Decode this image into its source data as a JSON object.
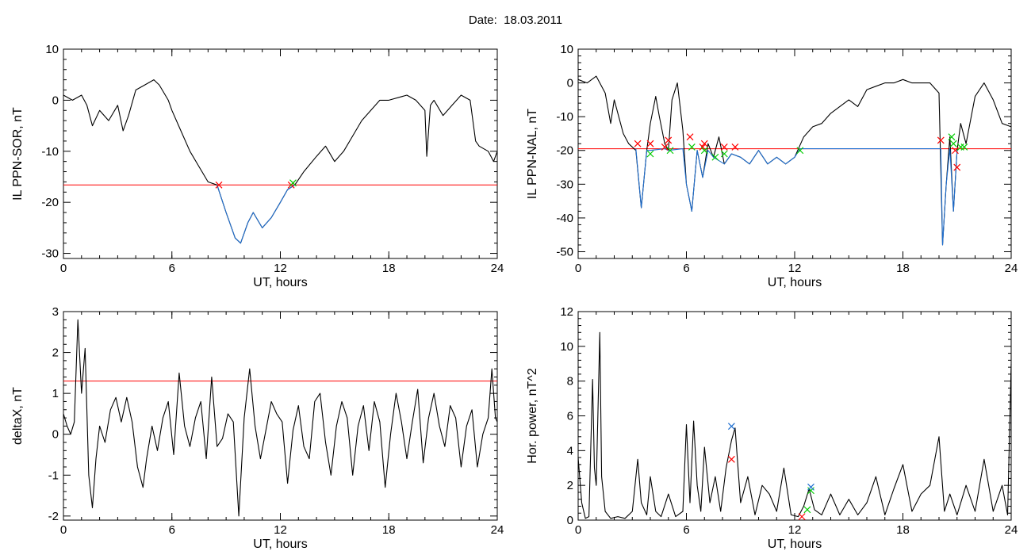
{
  "header": {
    "date_label": "Date:",
    "date_value": "18.03.2011"
  },
  "chart_data": [
    {
      "type": "line",
      "title": "",
      "xlabel": "UT, hours",
      "ylabel": "IL PPN-SOR, nT",
      "xlim": [
        0,
        24
      ],
      "ylim": [
        -31,
        10
      ],
      "xticks": [
        0,
        6,
        12,
        18,
        24
      ],
      "yticks": [
        -30,
        -20,
        -10,
        0,
        10
      ],
      "threshold": -16.6,
      "series": [
        {
          "role": "signal",
          "color": "#000000",
          "x": [
            0,
            0.5,
            1,
            1.3,
            1.6,
            2.0,
            2.5,
            3.0,
            3.3,
            3.6,
            4.0,
            4.5,
            5.0,
            5.3,
            5.8,
            6.0,
            6.5,
            7.0,
            7.5,
            8.0,
            8.5,
            9.0,
            9.5,
            9.8,
            10.2,
            10.5,
            11.0,
            11.5,
            12.0,
            12.4,
            12.8,
            13.3,
            14.0,
            14.5,
            15.0,
            15.5,
            16.0,
            16.5,
            17.0,
            17.5,
            18.0,
            19.0,
            19.5,
            20.0,
            20.1,
            20.3,
            20.5,
            21.0,
            21.5,
            22.0,
            22.5,
            22.8,
            23.0,
            23.5,
            23.8,
            24.0
          ],
          "y": [
            1,
            0,
            1,
            -1,
            -5,
            -2,
            -4,
            -1,
            -6,
            -3,
            2,
            3,
            4,
            3,
            0,
            -2,
            -6,
            -10,
            -13,
            -16,
            -16.6,
            -22,
            -27,
            -28,
            -24,
            -22,
            -25,
            -23,
            -20,
            -17.5,
            -16.6,
            -14,
            -11,
            -9,
            -12,
            -10,
            -7,
            -4,
            -2,
            0,
            0,
            1,
            0,
            -2,
            -11,
            -1,
            0,
            -3,
            -1,
            1,
            0,
            -8,
            -9,
            -10,
            -12,
            -10
          ]
        },
        {
          "role": "below-threshold",
          "color": "#1f6fd0",
          "x": [
            8.5,
            9.0,
            9.5,
            9.8,
            10.2,
            10.5,
            11.0,
            11.5,
            12.0,
            12.4,
            12.8
          ],
          "y": [
            -16.6,
            -22,
            -27,
            -28,
            -24,
            -22,
            -25,
            -23,
            -20,
            -17.5,
            -16.6
          ]
        }
      ],
      "markers": [
        {
          "x": 8.6,
          "y": -16.6,
          "color": "#ff0000"
        },
        {
          "x": 12.6,
          "y": -16.6,
          "color": "#ff0000"
        },
        {
          "x": 12.7,
          "y": -16.2,
          "color": "#00cc00"
        }
      ]
    },
    {
      "type": "line",
      "title": "",
      "xlabel": "UT, hours",
      "ylabel": "IL PPN-NAL, nT",
      "xlim": [
        0,
        24
      ],
      "ylim": [
        -52,
        10
      ],
      "xticks": [
        0,
        6,
        12,
        18,
        24
      ],
      "yticks": [
        -50,
        -40,
        -30,
        -20,
        -10,
        0,
        10
      ],
      "threshold": -19.5,
      "series": [
        {
          "role": "signal",
          "color": "#000000",
          "x": [
            0,
            0.5,
            1.0,
            1.5,
            1.8,
            2.0,
            2.5,
            2.8,
            3.2,
            3.5,
            3.8,
            4.0,
            4.3,
            4.5,
            4.8,
            5.0,
            5.2,
            5.5,
            5.8,
            6.0,
            6.3,
            6.6,
            6.9,
            7.2,
            7.5,
            7.8,
            8.1,
            8.5,
            9.0,
            9.5,
            10.0,
            10.5,
            11.0,
            11.5,
            12.0,
            12.5,
            13.0,
            13.5,
            14.0,
            15.0,
            15.5,
            16.0,
            16.5,
            17.0,
            17.5,
            18.0,
            18.5,
            19.0,
            19.5,
            20.0,
            20.2,
            20.4,
            20.6,
            20.8,
            21.0,
            21.2,
            21.5,
            22.0,
            22.5,
            23.0,
            23.5,
            24.0
          ],
          "y": [
            1,
            0,
            2,
            -3,
            -12,
            -5,
            -15,
            -18,
            -20,
            -37,
            -20,
            -12,
            -4,
            -10,
            -18,
            -20,
            -5,
            0,
            -14,
            -30,
            -38,
            -20,
            -28,
            -18,
            -22,
            -16,
            -24,
            -21,
            -22,
            -24,
            -20,
            -24,
            -22,
            -24,
            -22,
            -16,
            -13,
            -12,
            -9,
            -5,
            -7,
            -2,
            -1,
            0,
            0,
            1,
            0,
            0,
            0,
            -3,
            -48,
            -30,
            -16,
            -38,
            -20,
            -12,
            -18,
            -4,
            0,
            -5,
            -12,
            -13
          ]
        },
        {
          "role": "below-threshold",
          "color": "#1f6fd0",
          "x": [
            3.2,
            3.5,
            3.8,
            4.0,
            4.8,
            5.0,
            5.8,
            6.0,
            6.3,
            6.6,
            6.9,
            7.2,
            7.5,
            8.1,
            8.5,
            9.0,
            9.5,
            10.0,
            10.5,
            11.0,
            11.5,
            12.0,
            12.3,
            20.1,
            20.2,
            20.4,
            20.6,
            20.8,
            21.0
          ],
          "y": [
            -19.5,
            -37,
            -20,
            -20,
            -19.5,
            -20,
            -19.5,
            -30,
            -38,
            -20,
            -28,
            -20,
            -22,
            -24,
            -21,
            -22,
            -24,
            -20,
            -24,
            -22,
            -24,
            -22,
            -19.5,
            -19.5,
            -48,
            -30,
            -19.5,
            -38,
            -20
          ]
        }
      ],
      "markers": [
        {
          "x": 3.3,
          "y": -18,
          "color": "#ff0000"
        },
        {
          "x": 4.0,
          "y": -18,
          "color": "#ff0000"
        },
        {
          "x": 4.0,
          "y": -21,
          "color": "#00cc00"
        },
        {
          "x": 4.8,
          "y": -19,
          "color": "#ff0000"
        },
        {
          "x": 5.0,
          "y": -17,
          "color": "#ff0000"
        },
        {
          "x": 5.1,
          "y": -20,
          "color": "#00cc00"
        },
        {
          "x": 6.2,
          "y": -16,
          "color": "#ff0000"
        },
        {
          "x": 6.3,
          "y": -19,
          "color": "#00cc00"
        },
        {
          "x": 6.9,
          "y": -19,
          "color": "#ff0000"
        },
        {
          "x": 7.0,
          "y": -18,
          "color": "#ff0000"
        },
        {
          "x": 7.0,
          "y": -20,
          "color": "#00cc00"
        },
        {
          "x": 7.6,
          "y": -22,
          "color": "#00cc00"
        },
        {
          "x": 8.1,
          "y": -19,
          "color": "#ff0000"
        },
        {
          "x": 8.1,
          "y": -21,
          "color": "#00cc00"
        },
        {
          "x": 8.7,
          "y": -19,
          "color": "#ff0000"
        },
        {
          "x": 12.3,
          "y": -20,
          "color": "#00cc00"
        },
        {
          "x": 20.1,
          "y": -17,
          "color": "#ff0000"
        },
        {
          "x": 20.7,
          "y": -16,
          "color": "#00cc00"
        },
        {
          "x": 20.8,
          "y": -18,
          "color": "#00cc00"
        },
        {
          "x": 20.9,
          "y": -20,
          "color": "#ff0000"
        },
        {
          "x": 21.0,
          "y": -25,
          "color": "#ff0000"
        },
        {
          "x": 21.2,
          "y": -19,
          "color": "#00cc00"
        },
        {
          "x": 21.4,
          "y": -19,
          "color": "#00cc00"
        }
      ]
    },
    {
      "type": "line",
      "title": "",
      "xlabel": "UT, hours",
      "ylabel": "deltaX, nT",
      "xlim": [
        0,
        24
      ],
      "ylim": [
        -2.1,
        3
      ],
      "xticks": [
        0,
        6,
        12,
        18,
        24
      ],
      "yticks": [
        -2,
        -1,
        0,
        1,
        2,
        3
      ],
      "threshold": 1.3,
      "series": [
        {
          "role": "signal",
          "color": "#000000",
          "x": [
            0,
            0.2,
            0.4,
            0.6,
            0.8,
            1.0,
            1.2,
            1.4,
            1.6,
            1.8,
            2.0,
            2.3,
            2.6,
            2.9,
            3.2,
            3.5,
            3.8,
            4.1,
            4.4,
            4.6,
            4.9,
            5.2,
            5.5,
            5.8,
            6.1,
            6.4,
            6.7,
            7.0,
            7.3,
            7.6,
            7.9,
            8.2,
            8.5,
            8.8,
            9.1,
            9.4,
            9.7,
            10.0,
            10.3,
            10.6,
            10.9,
            11.2,
            11.5,
            11.8,
            12.1,
            12.4,
            12.7,
            13.0,
            13.3,
            13.6,
            13.9,
            14.2,
            14.5,
            14.8,
            15.1,
            15.4,
            15.7,
            16.0,
            16.3,
            16.6,
            16.9,
            17.2,
            17.5,
            17.8,
            18.1,
            18.4,
            18.7,
            19.0,
            19.3,
            19.6,
            19.9,
            20.2,
            20.5,
            20.8,
            21.1,
            21.4,
            21.7,
            22.0,
            22.3,
            22.6,
            22.9,
            23.2,
            23.5,
            23.7,
            23.9,
            24.0
          ],
          "y": [
            0.5,
            0.2,
            0,
            0.3,
            2.8,
            1.0,
            2.1,
            -1.0,
            -1.8,
            -0.6,
            0.2,
            -0.2,
            0.6,
            0.9,
            0.3,
            0.9,
            0.3,
            -0.8,
            -1.3,
            -0.6,
            0.2,
            -0.4,
            0.4,
            0.8,
            -0.5,
            1.5,
            0.2,
            -0.3,
            0.4,
            0.8,
            -0.6,
            1.4,
            -0.3,
            -0.1,
            0.5,
            0.3,
            -2.0,
            0.4,
            1.6,
            0.2,
            -0.6,
            0.1,
            0.8,
            0.5,
            0.3,
            -1.2,
            0.1,
            0.7,
            -0.3,
            -0.6,
            0.8,
            1.0,
            -0.2,
            -1.0,
            0.2,
            0.8,
            0.4,
            -1.0,
            0.2,
            0.7,
            -0.4,
            0.8,
            0.3,
            -1.3,
            0.0,
            1.0,
            0.3,
            -0.6,
            0.3,
            1.1,
            -0.7,
            0.4,
            1.0,
            0.2,
            -0.3,
            0.7,
            0.4,
            -0.8,
            0.2,
            0.6,
            -0.8,
            0.0,
            0.4,
            1.6,
            0.4,
            0.3
          ]
        }
      ],
      "markers": []
    },
    {
      "type": "line",
      "title": "",
      "xlabel": "UT, hours",
      "ylabel": "Hor. power, nT^2",
      "xlim": [
        0,
        24
      ],
      "ylim": [
        0,
        12
      ],
      "xticks": [
        0,
        6,
        12,
        18,
        24
      ],
      "yticks": [
        0,
        2,
        4,
        6,
        8,
        10,
        12
      ],
      "threshold": null,
      "series": [
        {
          "role": "signal",
          "color": "#000000",
          "x": [
            0,
            0.2,
            0.4,
            0.6,
            0.8,
            0.9,
            1.0,
            1.2,
            1.3,
            1.5,
            1.8,
            2.2,
            2.6,
            3.0,
            3.3,
            3.5,
            3.8,
            4.0,
            4.3,
            4.6,
            5.0,
            5.4,
            5.8,
            6.0,
            6.2,
            6.4,
            6.6,
            6.8,
            7.0,
            7.3,
            7.6,
            7.9,
            8.2,
            8.5,
            8.7,
            9.0,
            9.4,
            9.8,
            10.2,
            10.6,
            11.0,
            11.4,
            11.8,
            12.2,
            12.5,
            12.8,
            13.1,
            13.5,
            14.0,
            14.5,
            15.0,
            15.5,
            16.0,
            16.5,
            17.0,
            17.5,
            18.0,
            18.5,
            19.0,
            19.5,
            20.0,
            20.3,
            20.6,
            21.0,
            21.5,
            22.0,
            22.5,
            23.0,
            23.5,
            23.8,
            24.0
          ],
          "y": [
            3.6,
            1.0,
            0.1,
            0.2,
            8.1,
            3.0,
            2.0,
            10.8,
            2.5,
            0.5,
            0.1,
            0.2,
            0.1,
            0.5,
            3.5,
            1.0,
            0.3,
            2.5,
            0.5,
            0.2,
            1.5,
            0.2,
            0.5,
            5.5,
            1.0,
            5.7,
            2.0,
            0.5,
            4.2,
            1.0,
            2.5,
            0.5,
            3.0,
            4.6,
            5.3,
            1.0,
            2.5,
            0.3,
            2.0,
            1.5,
            0.5,
            3.0,
            0.3,
            0.2,
            0.8,
            1.8,
            0.6,
            0.3,
            1.5,
            0.3,
            1.2,
            0.3,
            1.0,
            2.5,
            0.3,
            1.8,
            3.2,
            0.5,
            1.5,
            2.0,
            4.8,
            0.5,
            1.5,
            0.3,
            2.0,
            0.5,
            3.5,
            0.5,
            2.0,
            0.3,
            9.0
          ]
        }
      ],
      "markers": [
        {
          "x": 8.5,
          "y": 5.4,
          "color": "#1f6fd0"
        },
        {
          "x": 8.5,
          "y": 3.5,
          "color": "#ff0000"
        },
        {
          "x": 12.4,
          "y": 0.2,
          "color": "#ff0000"
        },
        {
          "x": 12.7,
          "y": 0.6,
          "color": "#00cc00"
        },
        {
          "x": 12.9,
          "y": 1.7,
          "color": "#00cc00"
        },
        {
          "x": 12.9,
          "y": 1.9,
          "color": "#1f6fd0"
        }
      ]
    }
  ]
}
